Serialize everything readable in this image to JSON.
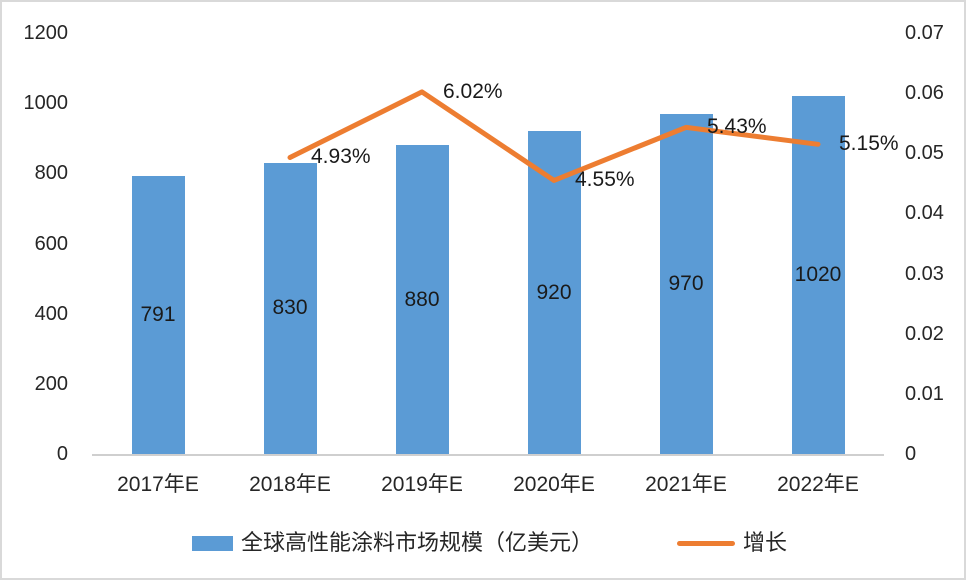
{
  "colors": {
    "bar": "#5B9BD5",
    "line": "#ED7D31",
    "text": "#262626",
    "axis_line": "#cfcfcf"
  },
  "chart_data": {
    "type": "bar",
    "subtype": "combo bar + line, dual axis",
    "categories": [
      "2017年E",
      "2018年E",
      "2019年E",
      "2020年E",
      "2021年E",
      "2022年E"
    ],
    "series": [
      {
        "name": "全球高性能涂料市场规模（亿美元）",
        "type": "bar",
        "axis": "left",
        "values": [
          791,
          830,
          880,
          920,
          970,
          1020
        ],
        "labels": [
          "791",
          "830",
          "880",
          "920",
          "970",
          "1020"
        ]
      },
      {
        "name": "增长",
        "type": "line",
        "axis": "right",
        "values": [
          null,
          0.0493,
          0.0602,
          0.0455,
          0.0543,
          0.0515
        ],
        "labels": [
          null,
          "4.93%",
          "6.02%",
          "4.55%",
          "5.43%",
          "5.15%"
        ]
      }
    ],
    "left_axis": {
      "min": 0,
      "max": 1200,
      "ticks": [
        "1200",
        "1000",
        "800",
        "600",
        "400",
        "200",
        "0"
      ]
    },
    "right_axis": {
      "min": 0,
      "max": 0.07,
      "ticks": [
        "0.07",
        "0.06",
        "0.05",
        "0.04",
        "0.03",
        "0.02",
        "0.01",
        "0"
      ]
    },
    "legend": [
      {
        "label": "全球高性能涂料市场规模（亿美元）",
        "swatch": "bar"
      },
      {
        "label": "增长",
        "swatch": "line"
      }
    ],
    "grid": false,
    "legend_position": "bottom",
    "title": ""
  }
}
